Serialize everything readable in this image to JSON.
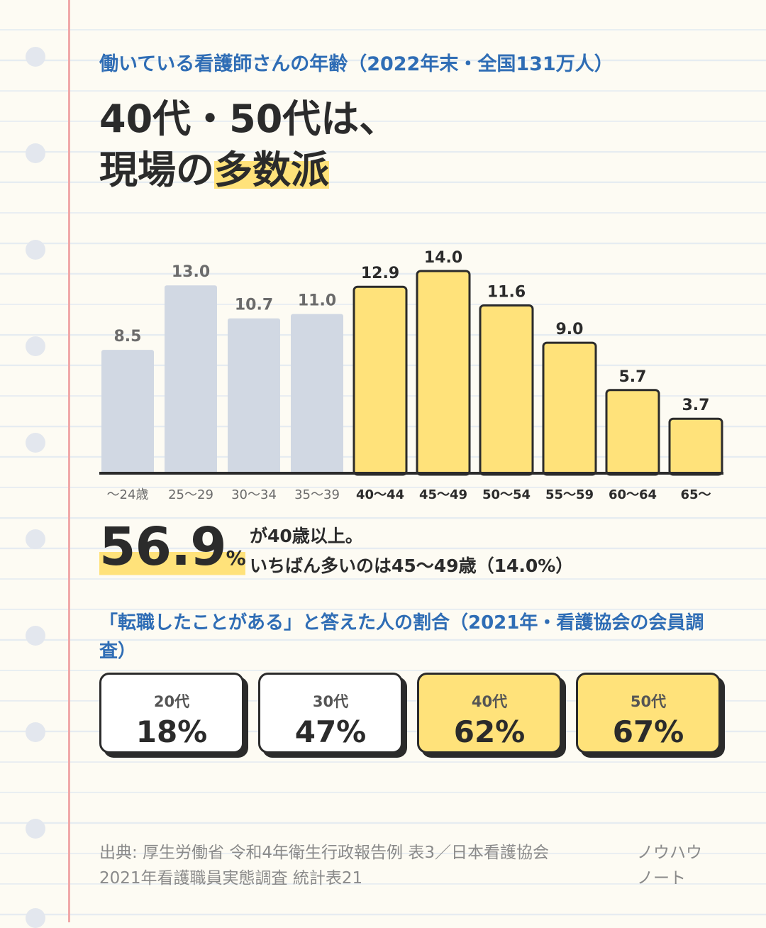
{
  "header": {
    "subtitle": "働いている看護師さんの年齢（2022年末・全国131万人）",
    "headline_line1": "40代・50代は、",
    "headline_line2_prefix": "現場の",
    "headline_line2_highlight": "多数派"
  },
  "chart_data": {
    "type": "bar",
    "categories": [
      "〜24歳",
      "25〜29",
      "30〜34",
      "35〜39",
      "40〜44",
      "45〜49",
      "50〜54",
      "55〜59",
      "60〜64",
      "65〜"
    ],
    "values": [
      8.5,
      13.0,
      10.7,
      11.0,
      12.9,
      14.0,
      11.6,
      9.0,
      5.7,
      3.7
    ],
    "value_labels": [
      "8.5",
      "13.0",
      "10.7",
      "11.0",
      "12.9",
      "14.0",
      "11.6",
      "9.0",
      "5.7",
      "3.7"
    ],
    "highlighted": [
      false,
      false,
      false,
      false,
      true,
      true,
      true,
      true,
      true,
      true
    ],
    "ylim": [
      0,
      14
    ],
    "xlabel": "",
    "ylabel": "",
    "title": "",
    "grid": false,
    "colors": {
      "muted": "#d1d8e3",
      "highlight": "#ffe27a",
      "outline": "#2b2b2b",
      "muted_text": "#6b6b6b"
    }
  },
  "stat": {
    "value": "56.9",
    "unit": "%",
    "line1": "が40歳以上。",
    "line2": "いちばん多いのは45〜49歳（14.0%）"
  },
  "survey": {
    "title": "「転職したことがある」と答えた人の割合（2021年・看護協会の会員調査）",
    "cards": [
      {
        "label": "20代",
        "value": "18%",
        "highlight": false
      },
      {
        "label": "30代",
        "value": "47%",
        "highlight": false
      },
      {
        "label": "40代",
        "value": "62%",
        "highlight": true
      },
      {
        "label": "50代",
        "value": "67%",
        "highlight": true
      }
    ]
  },
  "footer": {
    "source_line1": "出典: 厚生労働省 令和4年衛生行政報告例 表3／日本看護協会",
    "source_line2": "2021年看護職員実態調査 統計表21",
    "brand_line1": "ノウハウ",
    "brand_line2": "ノート"
  },
  "colors": {
    "accent_blue": "#2f6db5",
    "highlight_yellow": "#ffe27a",
    "margin_red": "#f0a9a9"
  }
}
